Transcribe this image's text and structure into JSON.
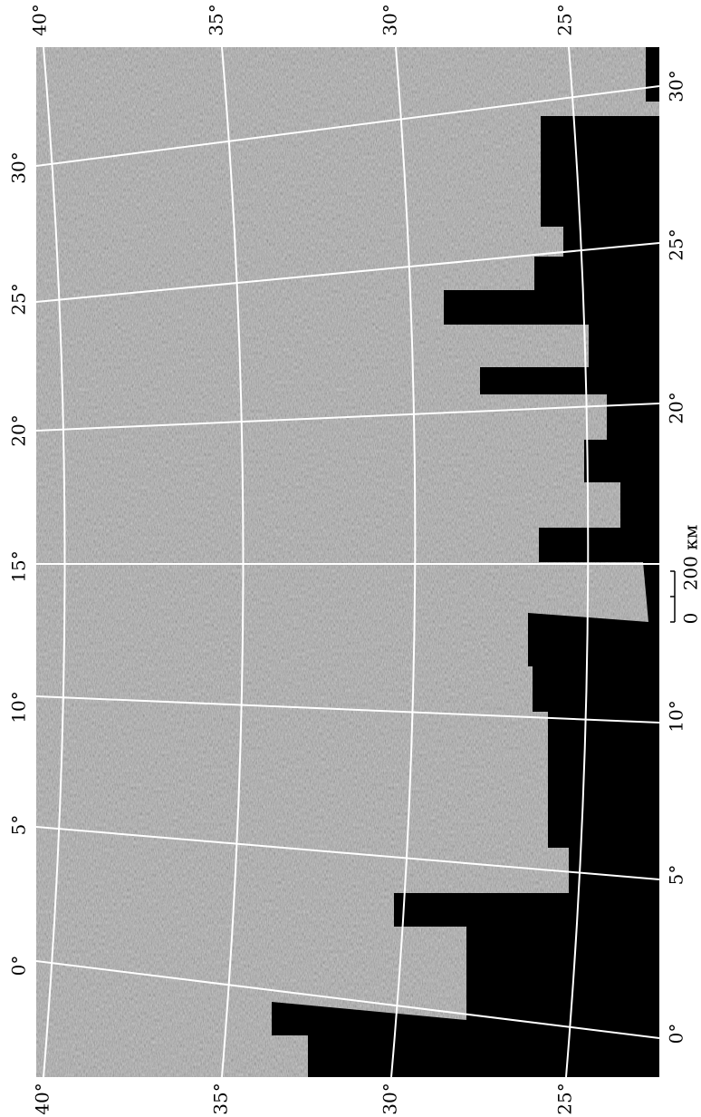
{
  "top_labels": [
    "40°",
    "35°",
    "30°",
    "25°"
  ],
  "bottom_labels": [
    "40°",
    "35°",
    "30°",
    "25°"
  ],
  "left_labels": [
    "30°",
    "25°",
    "20°",
    "15°",
    "10°",
    "5°",
    "0°"
  ],
  "right_labels": [
    "30°",
    "25°",
    "20°",
    "10°",
    "5°",
    "0°"
  ],
  "scale_bar": {
    "start": "0",
    "end": "200 км"
  }
}
